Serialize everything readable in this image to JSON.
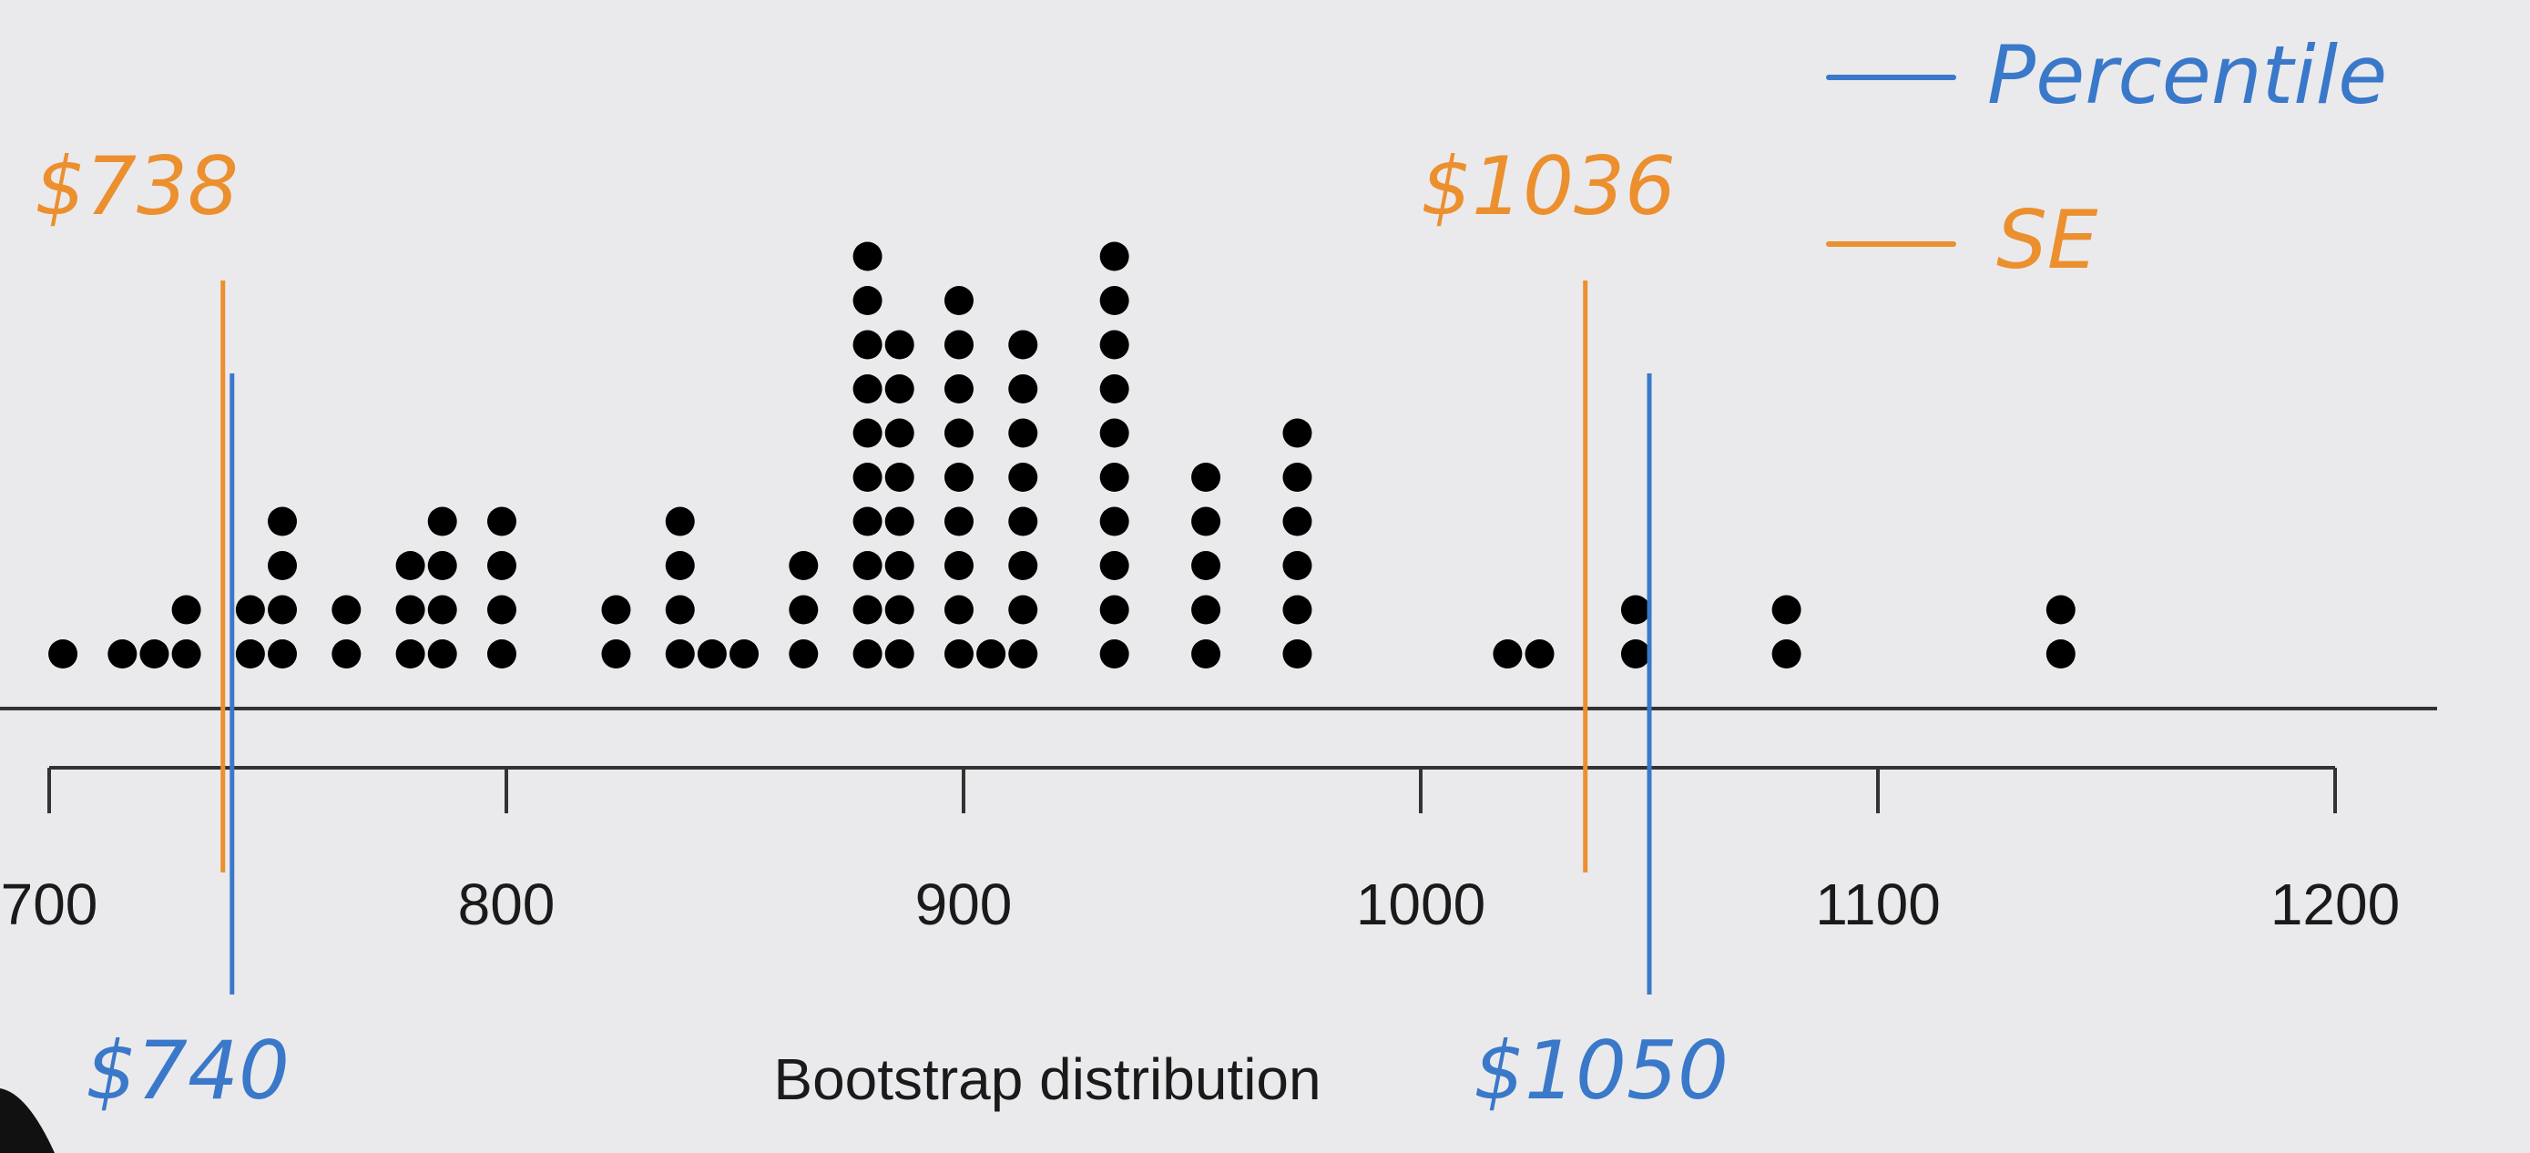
{
  "chart_data": {
    "type": "scatter",
    "subtype": "dot-plot",
    "xlabel": "Bootstrap distribution",
    "xlim": [
      700,
      1200
    ],
    "xticks": [
      700,
      800,
      900,
      1000,
      1100,
      1200
    ],
    "tick_labels": [
      "700",
      "800",
      "900",
      "1000",
      "1100",
      "1200"
    ],
    "dot_color": "#000000",
    "dots": [
      {
        "x": 703,
        "count": 1
      },
      {
        "x": 716,
        "count": 1
      },
      {
        "x": 723,
        "count": 1
      },
      {
        "x": 730,
        "count": 2
      },
      {
        "x": 744,
        "count": 2
      },
      {
        "x": 751,
        "count": 4
      },
      {
        "x": 765,
        "count": 2
      },
      {
        "x": 779,
        "count": 3
      },
      {
        "x": 786,
        "count": 4
      },
      {
        "x": 799,
        "count": 4
      },
      {
        "x": 824,
        "count": 2
      },
      {
        "x": 838,
        "count": 4
      },
      {
        "x": 845,
        "count": 1
      },
      {
        "x": 852,
        "count": 1
      },
      {
        "x": 865,
        "count": 3
      },
      {
        "x": 879,
        "count": 10
      },
      {
        "x": 886,
        "count": 8
      },
      {
        "x": 899,
        "count": 9
      },
      {
        "x": 906,
        "count": 1
      },
      {
        "x": 913,
        "count": 8
      },
      {
        "x": 933,
        "count": 10
      },
      {
        "x": 953,
        "count": 5
      },
      {
        "x": 973,
        "count": 6
      },
      {
        "x": 1019,
        "count": 1
      },
      {
        "x": 1026,
        "count": 1
      },
      {
        "x": 1047,
        "count": 2
      },
      {
        "x": 1080,
        "count": 2
      },
      {
        "x": 1140,
        "count": 2
      }
    ],
    "intervals": [
      {
        "name": "Percentile",
        "color": "#3a78c9",
        "lower": 740,
        "upper": 1050,
        "lower_label": "$740",
        "upper_label": "$1050"
      },
      {
        "name": "SE",
        "color": "#ec8f2e",
        "lower": 738,
        "upper": 1036,
        "lower_label": "$738",
        "upper_label": "$1036"
      }
    ],
    "legend": {
      "position": "top-right",
      "entries": [
        "Percentile",
        "SE"
      ]
    }
  }
}
